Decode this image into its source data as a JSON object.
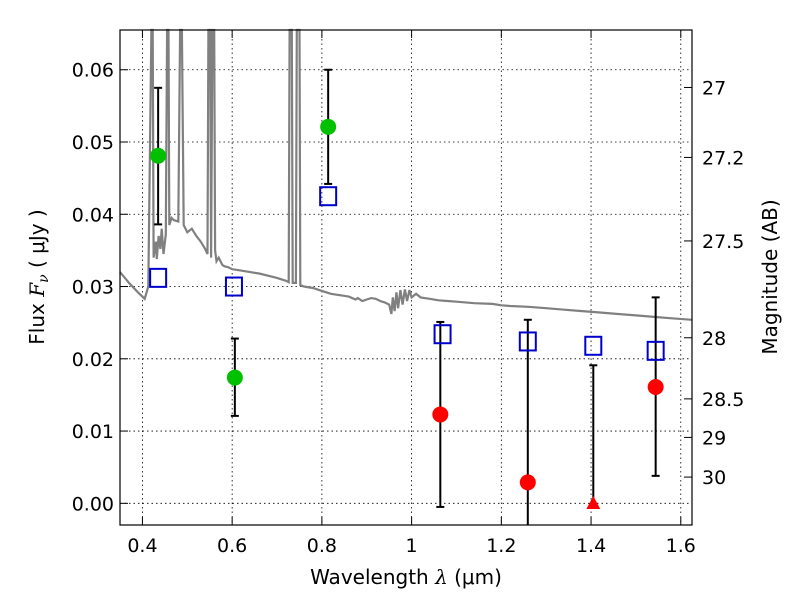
{
  "chart_data": {
    "type": "scatter",
    "xlabel": {
      "prefix": "Wavelength ",
      "symbol": "λ",
      "units": " (μm)"
    },
    "ylabel": {
      "prefix": "Flux ",
      "symbol": "F",
      "subscript": "ν",
      "units": " ( μJy )"
    },
    "y2label": "Magnitude (AB)",
    "xlim": [
      0.35,
      1.625
    ],
    "ylim": [
      -0.003,
      0.0655
    ],
    "grid": true,
    "x_ticks": [
      {
        "value": 0.4,
        "label": "0.4"
      },
      {
        "value": 0.6,
        "label": "0.6"
      },
      {
        "value": 0.8,
        "label": "0.8"
      },
      {
        "value": 1.0,
        "label": "1"
      },
      {
        "value": 1.2,
        "label": "1.2"
      },
      {
        "value": 1.4,
        "label": "1.4"
      },
      {
        "value": 1.6,
        "label": "1.6"
      }
    ],
    "y_ticks": [
      {
        "value": 0.0,
        "label": "0.00"
      },
      {
        "value": 0.01,
        "label": "0.01"
      },
      {
        "value": 0.02,
        "label": "0.02"
      },
      {
        "value": 0.03,
        "label": "0.03"
      },
      {
        "value": 0.04,
        "label": "0.04"
      },
      {
        "value": 0.05,
        "label": "0.05"
      },
      {
        "value": 0.06,
        "label": "0.06"
      }
    ],
    "magnitude_ticks": [
      {
        "value": 27,
        "label": "27"
      },
      {
        "value": 27.2,
        "label": "27.2"
      },
      {
        "value": 27.5,
        "label": "27.5"
      },
      {
        "value": 28,
        "label": "28"
      },
      {
        "value": 28.5,
        "label": "28.5"
      },
      {
        "value": 29,
        "label": "29"
      },
      {
        "value": 30,
        "label": "30"
      }
    ],
    "series": [
      {
        "marker": "circle",
        "color": "#00c000",
        "points": [
          {
            "x": 0.435,
            "y": 0.0481,
            "ylow": 0.0386,
            "yhigh": 0.0575
          },
          {
            "x": 0.606,
            "y": 0.0174,
            "ylow": 0.0121,
            "yhigh": 0.0228
          },
          {
            "x": 0.814,
            "y": 0.0521,
            "ylow": 0.0442,
            "yhigh": 0.06
          }
        ]
      },
      {
        "marker": "circle",
        "color": "#ff0000",
        "points": [
          {
            "x": 1.064,
            "y": 0.0123,
            "ylow": -0.0005,
            "yhigh": 0.0251
          },
          {
            "x": 1.259,
            "y": 0.0029,
            "ylow": -0.003,
            "yhigh": 0.0254
          },
          {
            "x": 1.544,
            "y": 0.0161,
            "ylow": 0.0038,
            "yhigh": 0.0285
          }
        ]
      },
      {
        "marker": "triangle",
        "color": "#ff0000",
        "points": [
          {
            "x": 1.405,
            "y": -0.0001,
            "ylow": -0.0001,
            "yhigh": 0.0191
          }
        ]
      },
      {
        "marker": "square-open",
        "color": "#0000cc",
        "points": [
          {
            "x": 0.435,
            "y": 0.0312
          },
          {
            "x": 0.604,
            "y": 0.03
          },
          {
            "x": 0.814,
            "y": 0.0425
          },
          {
            "x": 1.069,
            "y": 0.0234
          },
          {
            "x": 1.259,
            "y": 0.0224
          },
          {
            "x": 1.405,
            "y": 0.0218
          },
          {
            "x": 1.544,
            "y": 0.0211
          }
        ]
      }
    ],
    "model_spectrum": {
      "color": "#808080",
      "points": [
        [
          0.35,
          0.032
        ],
        [
          0.37,
          0.0305
        ],
        [
          0.39,
          0.0292
        ],
        [
          0.405,
          0.0283
        ],
        [
          0.413,
          0.03
        ],
        [
          0.42,
          0.07
        ],
        [
          0.423,
          0.07
        ],
        [
          0.425,
          0.034
        ],
        [
          0.43,
          0.0362
        ],
        [
          0.432,
          0.0338
        ],
        [
          0.436,
          0.037
        ],
        [
          0.44,
          0.0352
        ],
        [
          0.443,
          0.038
        ],
        [
          0.447,
          0.0345
        ],
        [
          0.452,
          0.0372
        ],
        [
          0.455,
          0.07
        ],
        [
          0.458,
          0.07
        ],
        [
          0.46,
          0.0385
        ],
        [
          0.465,
          0.0395
        ],
        [
          0.47,
          0.0392
        ],
        [
          0.48,
          0.039
        ],
        [
          0.484,
          0.07
        ],
        [
          0.488,
          0.07
        ],
        [
          0.492,
          0.0385
        ],
        [
          0.5,
          0.0375
        ],
        [
          0.51,
          0.038
        ],
        [
          0.52,
          0.037
        ],
        [
          0.53,
          0.0362
        ],
        [
          0.54,
          0.0352
        ],
        [
          0.545,
          0.0345
        ],
        [
          0.547,
          0.07
        ],
        [
          0.551,
          0.07
        ],
        [
          0.553,
          0.034
        ],
        [
          0.556,
          0.07
        ],
        [
          0.56,
          0.07
        ],
        [
          0.562,
          0.035
        ],
        [
          0.565,
          0.0335
        ],
        [
          0.57,
          0.034
        ],
        [
          0.578,
          0.033
        ],
        [
          0.583,
          0.0328
        ],
        [
          0.59,
          0.0327
        ],
        [
          0.6,
          0.0324
        ],
        [
          0.62,
          0.0322
        ],
        [
          0.64,
          0.032
        ],
        [
          0.66,
          0.0318
        ],
        [
          0.68,
          0.0315
        ],
        [
          0.7,
          0.0312
        ],
        [
          0.72,
          0.0308
        ],
        [
          0.726,
          0.0306
        ],
        [
          0.728,
          0.07
        ],
        [
          0.733,
          0.07
        ],
        [
          0.735,
          0.0305
        ],
        [
          0.742,
          0.0305
        ],
        [
          0.744,
          0.07
        ],
        [
          0.75,
          0.07
        ],
        [
          0.752,
          0.0302
        ],
        [
          0.76,
          0.03
        ],
        [
          0.78,
          0.0298
        ],
        [
          0.8,
          0.0294
        ],
        [
          0.82,
          0.029
        ],
        [
          0.84,
          0.0288
        ],
        [
          0.86,
          0.0286
        ],
        [
          0.875,
          0.0282
        ],
        [
          0.88,
          0.0284
        ],
        [
          0.89,
          0.028
        ],
        [
          0.9,
          0.0282
        ],
        [
          0.91,
          0.0284
        ],
        [
          0.92,
          0.0283
        ],
        [
          0.93,
          0.028
        ],
        [
          0.94,
          0.0278
        ],
        [
          0.95,
          0.0275
        ],
        [
          0.955,
          0.0262
        ],
        [
          0.958,
          0.0285
        ],
        [
          0.962,
          0.0266
        ],
        [
          0.966,
          0.0292
        ],
        [
          0.97,
          0.027
        ],
        [
          0.975,
          0.0295
        ],
        [
          0.98,
          0.0275
        ],
        [
          0.985,
          0.0296
        ],
        [
          0.99,
          0.028
        ],
        [
          0.995,
          0.0295
        ],
        [
          1.0,
          0.0285
        ],
        [
          1.01,
          0.029
        ],
        [
          1.02,
          0.0285
        ],
        [
          1.04,
          0.0283
        ],
        [
          1.06,
          0.0281
        ],
        [
          1.08,
          0.028
        ],
        [
          1.1,
          0.0279
        ],
        [
          1.14,
          0.0277
        ],
        [
          1.18,
          0.0276
        ],
        [
          1.2,
          0.0274
        ],
        [
          1.22,
          0.0273
        ],
        [
          1.26,
          0.0272
        ],
        [
          1.3,
          0.027
        ],
        [
          1.34,
          0.0268
        ],
        [
          1.38,
          0.0266
        ],
        [
          1.42,
          0.0264
        ],
        [
          1.46,
          0.0262
        ],
        [
          1.5,
          0.026
        ],
        [
          1.54,
          0.0258
        ],
        [
          1.58,
          0.0256
        ],
        [
          1.625,
          0.0254
        ]
      ]
    }
  }
}
